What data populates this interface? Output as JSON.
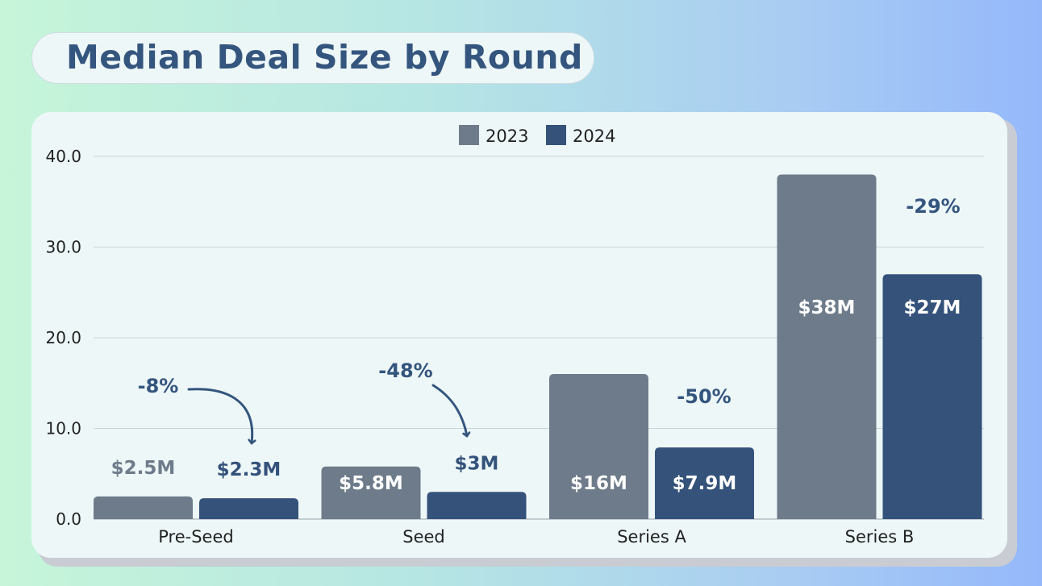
{
  "title": "Median Deal Size by Round",
  "colors": {
    "series_2023": "#6e7b8a",
    "series_2024": "#34527a",
    "accent": "#34557d",
    "label_outside_2023": "#6e7b8a",
    "label_outside_2024": "#34527a",
    "label_inside": "#ffffff",
    "grid": "#c9d4d8"
  },
  "chart_data": {
    "type": "bar",
    "categories": [
      "Pre-Seed",
      "Seed",
      "Series A",
      "Series B"
    ],
    "series": [
      {
        "name": "2023",
        "values": [
          2.5,
          5.8,
          16,
          38
        ],
        "labels": [
          "$2.5M",
          "$5.8M",
          "$16M",
          "$38M"
        ]
      },
      {
        "name": "2024",
        "values": [
          2.3,
          3,
          7.9,
          27
        ],
        "labels": [
          "$2.3M",
          "$3M",
          "$7.9M",
          "$27M"
        ]
      }
    ],
    "changes": [
      "-8%",
      "-48%",
      "-50%",
      "-29%"
    ],
    "y_ticks": [
      "0.0",
      "10.0",
      "20.0",
      "30.0",
      "40.0"
    ],
    "ylim": [
      0,
      40
    ],
    "grid": true,
    "legend_position": "top-center",
    "title": "Median Deal Size by Round",
    "xlabel": "",
    "ylabel": ""
  }
}
